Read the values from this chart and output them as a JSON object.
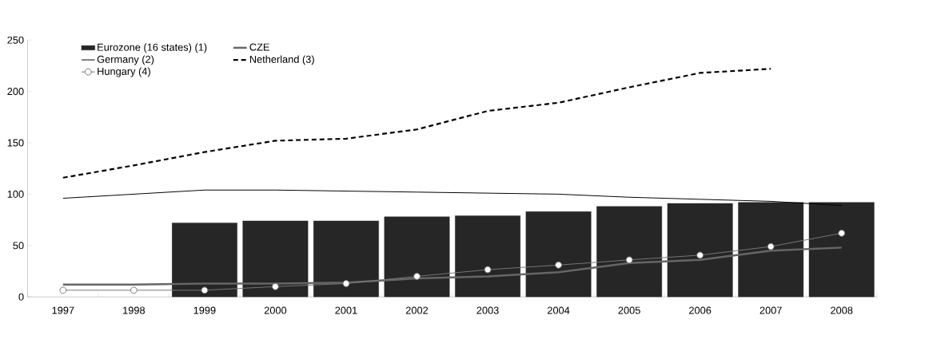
{
  "chart_data": {
    "type": "bar",
    "categories": [
      "1997",
      "1998",
      "1999",
      "2000",
      "2001",
      "2002",
      "2003",
      "2004",
      "2005",
      "2006",
      "2007",
      "2008"
    ],
    "series": [
      {
        "name": "Eurozone (16 states) (1)",
        "color": "#262626",
        "values": [
          null,
          null,
          72,
          74,
          74,
          78,
          79,
          83,
          88,
          91,
          92,
          92
        ]
      },
      {
        "name": "CZE",
        "type": "line",
        "color": "#666666",
        "values": [
          12,
          12,
          13,
          13,
          14,
          18,
          20,
          24,
          33,
          36,
          45,
          48
        ]
      },
      {
        "name": "Germany (2)",
        "type": "line",
        "color": "#000000",
        "values": [
          96,
          100,
          104,
          104,
          103,
          102,
          101,
          100,
          97,
          95,
          93,
          89
        ]
      },
      {
        "name": "Netherland (3)",
        "type": "line",
        "color": "#000000",
        "line_style": "dashed",
        "values": [
          116,
          128,
          141,
          152,
          154,
          163,
          181,
          189,
          204,
          218,
          222,
          null
        ]
      },
      {
        "name": "Hungary (4)",
        "type": "line",
        "color": "#777777",
        "marker": "circle",
        "values": [
          6.5,
          6.5,
          6.5,
          10,
          13,
          20,
          26.5,
          31,
          36,
          40.6,
          49,
          62
        ]
      }
    ],
    "ylim": [
      0,
      250
    ],
    "yticks": [
      0,
      50,
      100,
      150,
      200,
      250
    ],
    "legend": "top left",
    "grid": false
  }
}
